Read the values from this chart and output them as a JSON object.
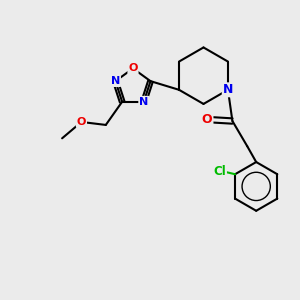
{
  "background_color": "#ebebeb",
  "bond_color": "#000000",
  "atom_colors": {
    "N": "#0000ee",
    "O": "#ee0000",
    "Cl": "#00bb00",
    "C": "#000000"
  },
  "bond_width": 1.5,
  "font_size_atom": 9,
  "font_size_cl": 8.5
}
